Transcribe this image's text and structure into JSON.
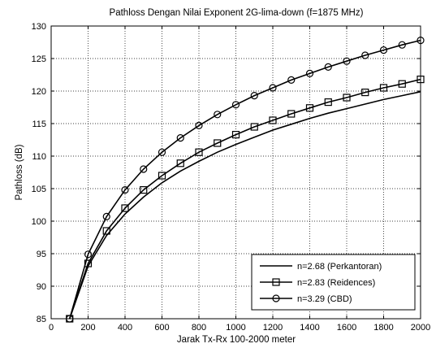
{
  "chart_data": {
    "type": "line",
    "title": "Pathloss Dengan Nilai Exponent 2G-lima-down (f=1875 MHz)",
    "xlabel": "Jarak Tx-Rx 100-2000 meter",
    "ylabel": "Pathloss (dB)",
    "xlim": [
      0,
      2000
    ],
    "ylim": [
      85,
      130
    ],
    "xticks": [
      0,
      200,
      400,
      600,
      800,
      1000,
      1200,
      1400,
      1600,
      1800,
      2000
    ],
    "yticks": [
      85,
      90,
      95,
      100,
      105,
      110,
      115,
      120,
      125,
      130
    ],
    "grid": true,
    "legend_position": "bottom-right",
    "x": [
      100,
      200,
      300,
      400,
      500,
      600,
      700,
      800,
      900,
      1000,
      1100,
      1200,
      1300,
      1400,
      1500,
      1600,
      1700,
      1800,
      1900,
      2000
    ],
    "series": [
      {
        "name": "n=2.68 (Perkantoran)",
        "marker": "none",
        "values": [
          85.0,
          93.1,
          97.8,
          101.1,
          103.7,
          105.9,
          107.7,
          109.2,
          110.6,
          111.8,
          112.9,
          114.0,
          114.9,
          115.8,
          116.6,
          117.3,
          118.0,
          118.7,
          119.3,
          119.9
        ]
      },
      {
        "name": "n=2.83 (Reidences)",
        "marker": "square",
        "values": [
          85.0,
          93.5,
          98.5,
          102.0,
          104.8,
          107.0,
          108.9,
          110.6,
          112.0,
          113.3,
          114.5,
          115.5,
          116.5,
          117.4,
          118.3,
          119.0,
          119.8,
          120.5,
          121.1,
          121.8
        ]
      },
      {
        "name": "n=3.29 (CBD)",
        "marker": "circle",
        "values": [
          85.0,
          94.9,
          100.7,
          104.8,
          108.0,
          110.6,
          112.8,
          114.7,
          116.4,
          117.9,
          119.3,
          120.5,
          121.7,
          122.7,
          123.7,
          124.6,
          125.5,
          126.3,
          127.1,
          127.8
        ]
      }
    ]
  }
}
